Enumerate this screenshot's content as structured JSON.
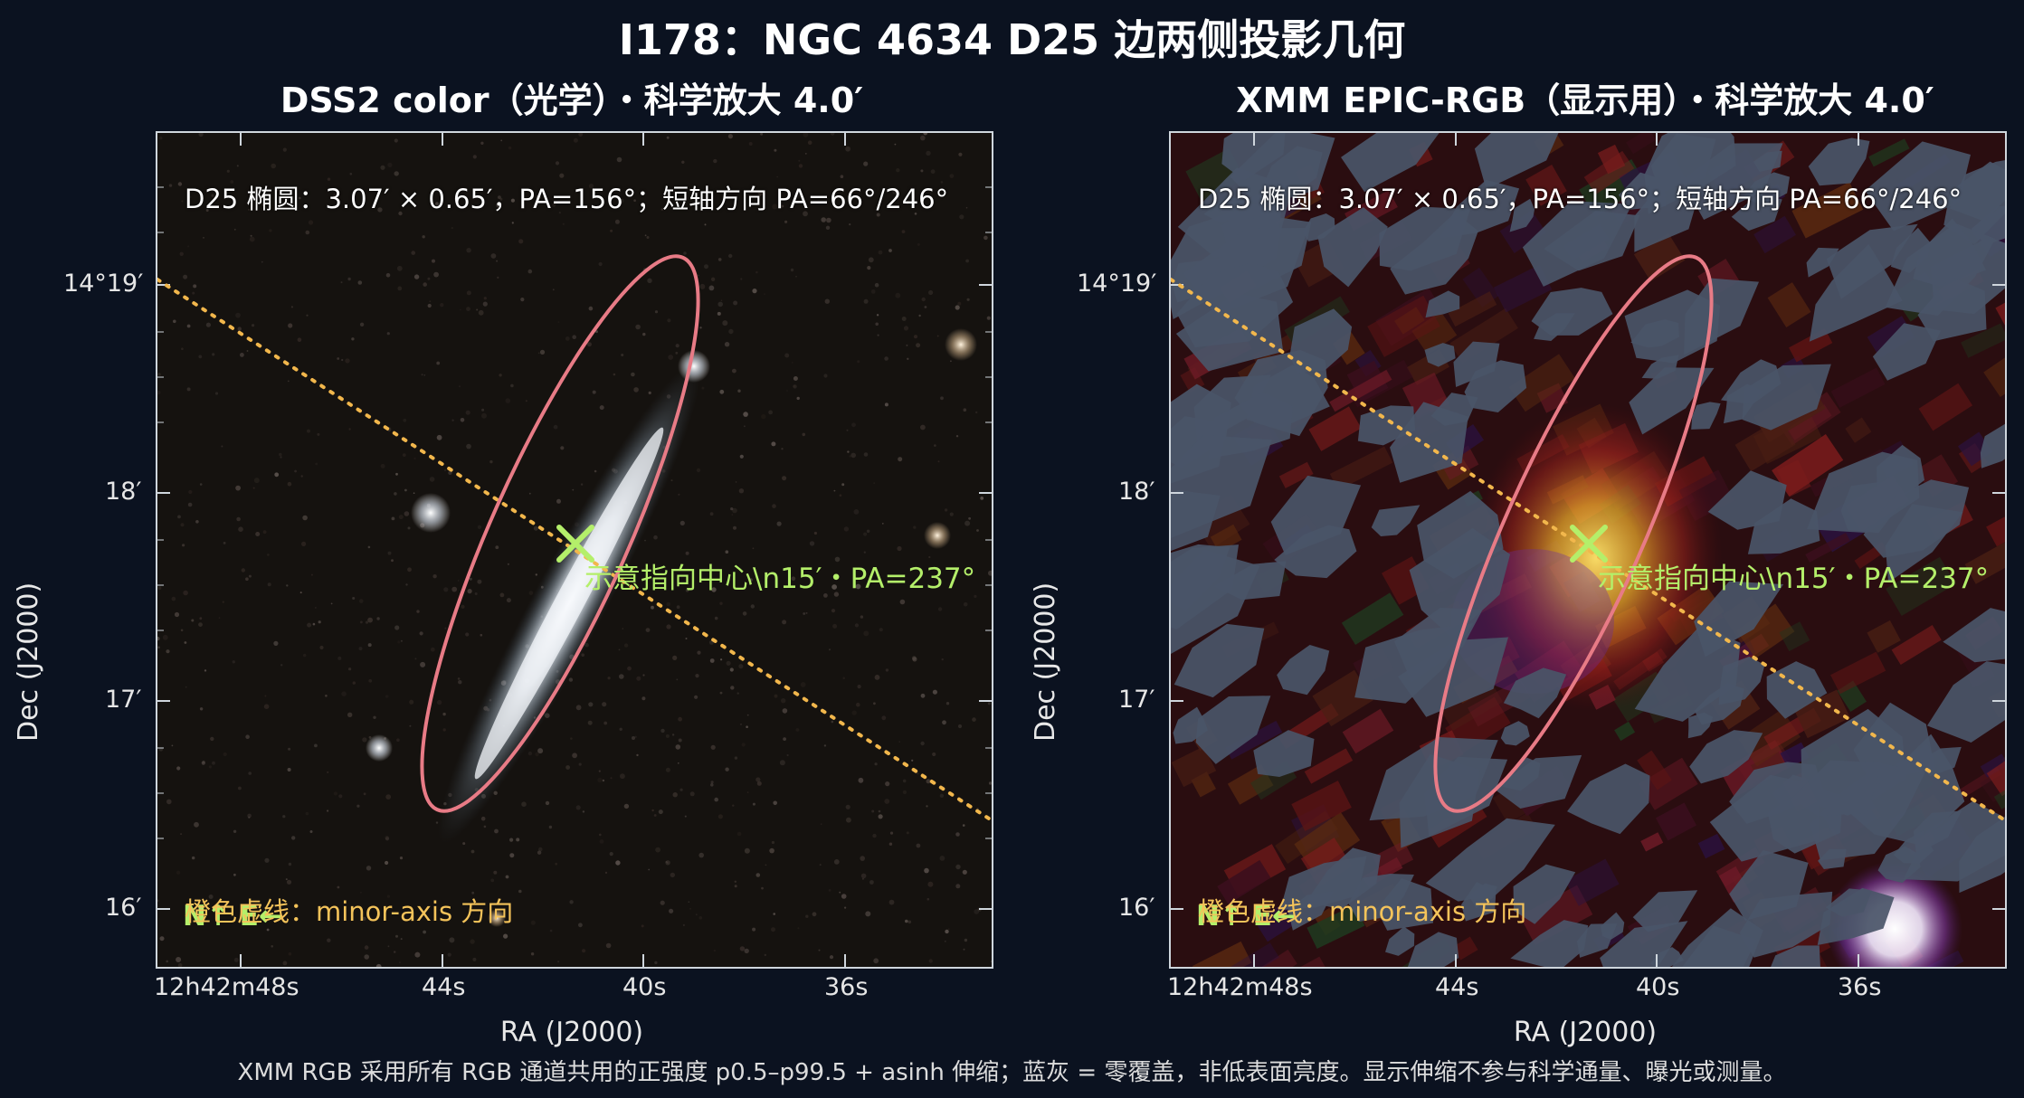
{
  "title": "I178：NGC 4634 D25 边两侧投影几何",
  "colors": {
    "background": "#0b1220",
    "ellipse": "#e87b86",
    "minor_axis": "#f2b74c",
    "pointer": "#b4ef6a",
    "zero_coverage": "#4a5568"
  },
  "panels": [
    {
      "title": "DSS2 color（光学）・科学放大 4.0′",
      "note": "D25 椭圆：3.07′ × 0.65′，PA=156°；短轴方向 PA=66°/246°",
      "pointer_label": "示意指向中心\\n15′・PA=237°",
      "legend_note": "橙色虚线：minor-axis 方向",
      "compass": "N↑ E←",
      "xlabel": "RA (J2000)",
      "ylabel": "Dec (J2000)",
      "xticks": [
        "12h42m48s",
        "44s",
        "40s",
        "36s"
      ],
      "yticks": [
        "14°19′",
        "18′",
        "17′",
        "16′"
      ]
    },
    {
      "title": "XMM EPIC-RGB（显示用）・科学放大 4.0′",
      "note": "D25 椭圆：3.07′ × 0.65′，PA=156°；短轴方向 PA=66°/246°",
      "pointer_label": "示意指向中心\\n15′・PA=237°",
      "legend_note": "橙色虚线：minor-axis 方向",
      "compass": "N↑ E←",
      "xlabel": "RA (J2000)",
      "ylabel": "Dec (J2000)",
      "xticks": [
        "12h42m48s",
        "44s",
        "40s",
        "36s"
      ],
      "yticks": [
        "14°19′",
        "18′",
        "17′",
        "16′"
      ]
    }
  ],
  "footnote": "XMM RGB 采用所有 RGB 通道共用的正强度 p0.5–p99.5 + asinh 伸缩；蓝灰 = 零覆盖，非低表面亮度。显示伸缩不参与科学通量、曝光或测量。"
}
